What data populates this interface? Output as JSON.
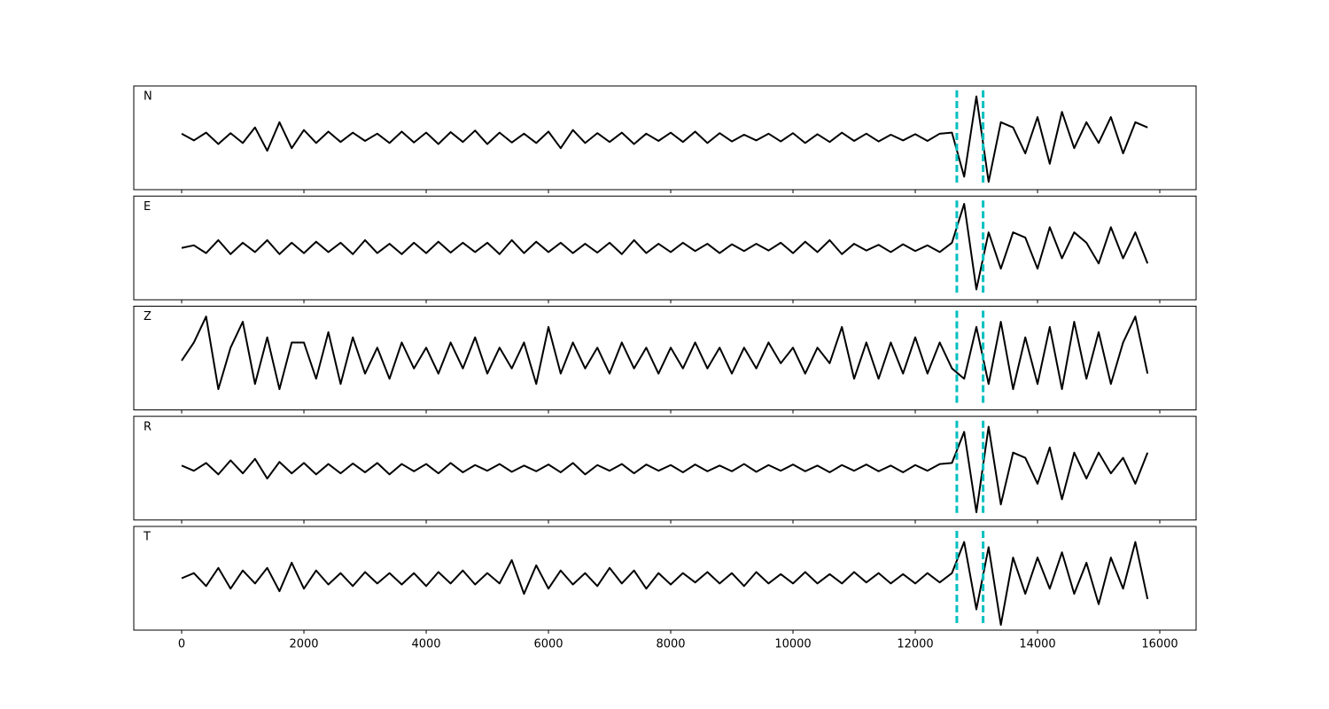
{
  "chart_data": {
    "type": "line",
    "x": [
      0,
      200,
      400,
      600,
      800,
      1000,
      1200,
      1400,
      1600,
      1800,
      2000,
      2200,
      2400,
      2600,
      2800,
      3000,
      3200,
      3400,
      3600,
      3800,
      4000,
      4200,
      4400,
      4600,
      4800,
      5000,
      5200,
      5400,
      5600,
      5800,
      6000,
      6200,
      6400,
      6600,
      6800,
      7000,
      7200,
      7400,
      7600,
      7800,
      8000,
      8200,
      8400,
      8600,
      8800,
      9000,
      9200,
      9400,
      9600,
      9800,
      10000,
      10200,
      10400,
      10600,
      10800,
      11000,
      11200,
      11400,
      11600,
      11800,
      12000,
      12200,
      12400,
      12600,
      12800,
      13000,
      13200,
      13400,
      13600,
      13800,
      14000,
      14200,
      14400,
      14600,
      14800,
      15000,
      15200,
      15400,
      15600,
      15800
    ],
    "series": [
      {
        "name": "N",
        "color": "#000000",
        "values": [
          0.08,
          -0.05,
          0.1,
          -0.12,
          0.09,
          -0.1,
          0.2,
          -0.25,
          0.3,
          -0.2,
          0.15,
          -0.1,
          0.12,
          -0.08,
          0.1,
          -0.06,
          0.08,
          -0.1,
          0.12,
          -0.09,
          0.1,
          -0.12,
          0.11,
          -0.08,
          0.14,
          -0.12,
          0.1,
          -0.09,
          0.08,
          -0.1,
          0.12,
          -0.2,
          0.15,
          -0.1,
          0.09,
          -0.08,
          0.1,
          -0.12,
          0.08,
          -0.06,
          0.1,
          -0.08,
          0.12,
          -0.1,
          0.09,
          -0.07,
          0.06,
          -0.05,
          0.08,
          -0.07,
          0.09,
          -0.1,
          0.07,
          -0.08,
          0.1,
          -0.06,
          0.08,
          -0.07,
          0.06,
          -0.05,
          0.07,
          -0.06,
          0.08,
          0.1,
          -0.75,
          0.8,
          -0.85,
          0.3,
          0.2,
          -0.3,
          0.4,
          -0.5,
          0.5,
          -0.2,
          0.3,
          -0.1,
          0.4,
          -0.3,
          0.3,
          0.2
        ]
      },
      {
        "name": "E",
        "color": "#000000",
        "values": [
          0.0,
          0.05,
          -0.1,
          0.15,
          -0.12,
          0.1,
          -0.08,
          0.15,
          -0.12,
          0.1,
          -0.1,
          0.12,
          -0.08,
          0.1,
          -0.12,
          0.15,
          -0.1,
          0.08,
          -0.12,
          0.1,
          -0.1,
          0.12,
          -0.09,
          0.1,
          -0.08,
          0.1,
          -0.12,
          0.15,
          -0.1,
          0.12,
          -0.08,
          0.1,
          -0.1,
          0.08,
          -0.09,
          0.1,
          -0.12,
          0.15,
          -0.1,
          0.08,
          -0.08,
          0.1,
          -0.06,
          0.08,
          -0.1,
          0.07,
          -0.06,
          0.08,
          -0.05,
          0.1,
          -0.1,
          0.12,
          -0.08,
          0.15,
          -0.12,
          0.08,
          -0.05,
          0.06,
          -0.08,
          0.07,
          -0.06,
          0.05,
          -0.08,
          0.1,
          0.85,
          -0.8,
          0.3,
          -0.4,
          0.3,
          0.2,
          -0.4,
          0.4,
          -0.2,
          0.3,
          0.1,
          -0.3,
          0.4,
          -0.2,
          0.3,
          -0.3
        ]
      },
      {
        "name": "Z",
        "color": "#000000",
        "values": [
          -0.05,
          0.3,
          0.8,
          -0.6,
          0.2,
          0.7,
          -0.5,
          0.4,
          -0.6,
          0.3,
          0.3,
          -0.4,
          0.5,
          -0.5,
          0.4,
          -0.3,
          0.2,
          -0.4,
          0.3,
          -0.2,
          0.2,
          -0.3,
          0.3,
          -0.2,
          0.4,
          -0.3,
          0.2,
          -0.2,
          0.3,
          -0.5,
          0.6,
          -0.3,
          0.3,
          -0.2,
          0.2,
          -0.3,
          0.3,
          -0.2,
          0.2,
          -0.3,
          0.2,
          -0.2,
          0.3,
          -0.2,
          0.2,
          -0.3,
          0.2,
          -0.2,
          0.3,
          -0.1,
          0.2,
          -0.3,
          0.2,
          -0.1,
          0.6,
          -0.4,
          0.3,
          -0.4,
          0.3,
          -0.3,
          0.4,
          -0.3,
          0.3,
          -0.2,
          -0.4,
          0.6,
          -0.5,
          0.7,
          -0.6,
          0.4,
          -0.5,
          0.6,
          -0.6,
          0.7,
          -0.4,
          0.5,
          -0.5,
          0.3,
          0.8,
          -0.3
        ]
      },
      {
        "name": "R",
        "color": "#000000",
        "values": [
          0.05,
          -0.05,
          0.1,
          -0.12,
          0.15,
          -0.1,
          0.18,
          -0.2,
          0.12,
          -0.1,
          0.1,
          -0.12,
          0.08,
          -0.1,
          0.09,
          -0.08,
          0.1,
          -0.12,
          0.08,
          -0.06,
          0.08,
          -0.1,
          0.1,
          -0.08,
          0.06,
          -0.05,
          0.08,
          -0.07,
          0.05,
          -0.06,
          0.07,
          -0.08,
          0.1,
          -0.12,
          0.06,
          -0.05,
          0.08,
          -0.1,
          0.07,
          -0.05,
          0.06,
          -0.08,
          0.07,
          -0.06,
          0.05,
          -0.06,
          0.08,
          -0.07,
          0.06,
          -0.05,
          0.07,
          -0.06,
          0.05,
          -0.08,
          0.06,
          -0.05,
          0.07,
          -0.06,
          0.05,
          -0.08,
          0.06,
          -0.05,
          0.08,
          0.1,
          0.7,
          -0.85,
          0.8,
          -0.7,
          0.3,
          0.2,
          -0.3,
          0.4,
          -0.6,
          0.3,
          -0.2,
          0.3,
          -0.1,
          0.2,
          -0.3,
          0.3
        ]
      },
      {
        "name": "T",
        "color": "#000000",
        "values": [
          0.0,
          0.1,
          -0.15,
          0.2,
          -0.2,
          0.15,
          -0.1,
          0.2,
          -0.25,
          0.3,
          -0.2,
          0.15,
          -0.12,
          0.1,
          -0.15,
          0.12,
          -0.1,
          0.1,
          -0.12,
          0.1,
          -0.15,
          0.12,
          -0.1,
          0.15,
          -0.12,
          0.1,
          -0.1,
          0.35,
          -0.3,
          0.25,
          -0.2,
          0.15,
          -0.12,
          0.1,
          -0.15,
          0.2,
          -0.1,
          0.15,
          -0.2,
          0.1,
          -0.12,
          0.1,
          -0.08,
          0.12,
          -0.1,
          0.1,
          -0.15,
          0.12,
          -0.1,
          0.08,
          -0.1,
          0.12,
          -0.1,
          0.08,
          -0.1,
          0.12,
          -0.08,
          0.1,
          -0.1,
          0.08,
          -0.1,
          0.1,
          -0.08,
          0.1,
          0.7,
          -0.6,
          0.6,
          -0.9,
          0.4,
          -0.3,
          0.4,
          -0.2,
          0.5,
          -0.3,
          0.3,
          -0.5,
          0.4,
          -0.2,
          0.7,
          -0.4
        ]
      }
    ],
    "xlim": [
      -783,
      16594
    ],
    "xticks": [
      0,
      2000,
      4000,
      6000,
      8000,
      10000,
      12000,
      14000,
      16000
    ],
    "ylim": [
      -1,
      1
    ],
    "vlines": [
      12680,
      13110
    ],
    "vline_color": "#00bfbf"
  }
}
